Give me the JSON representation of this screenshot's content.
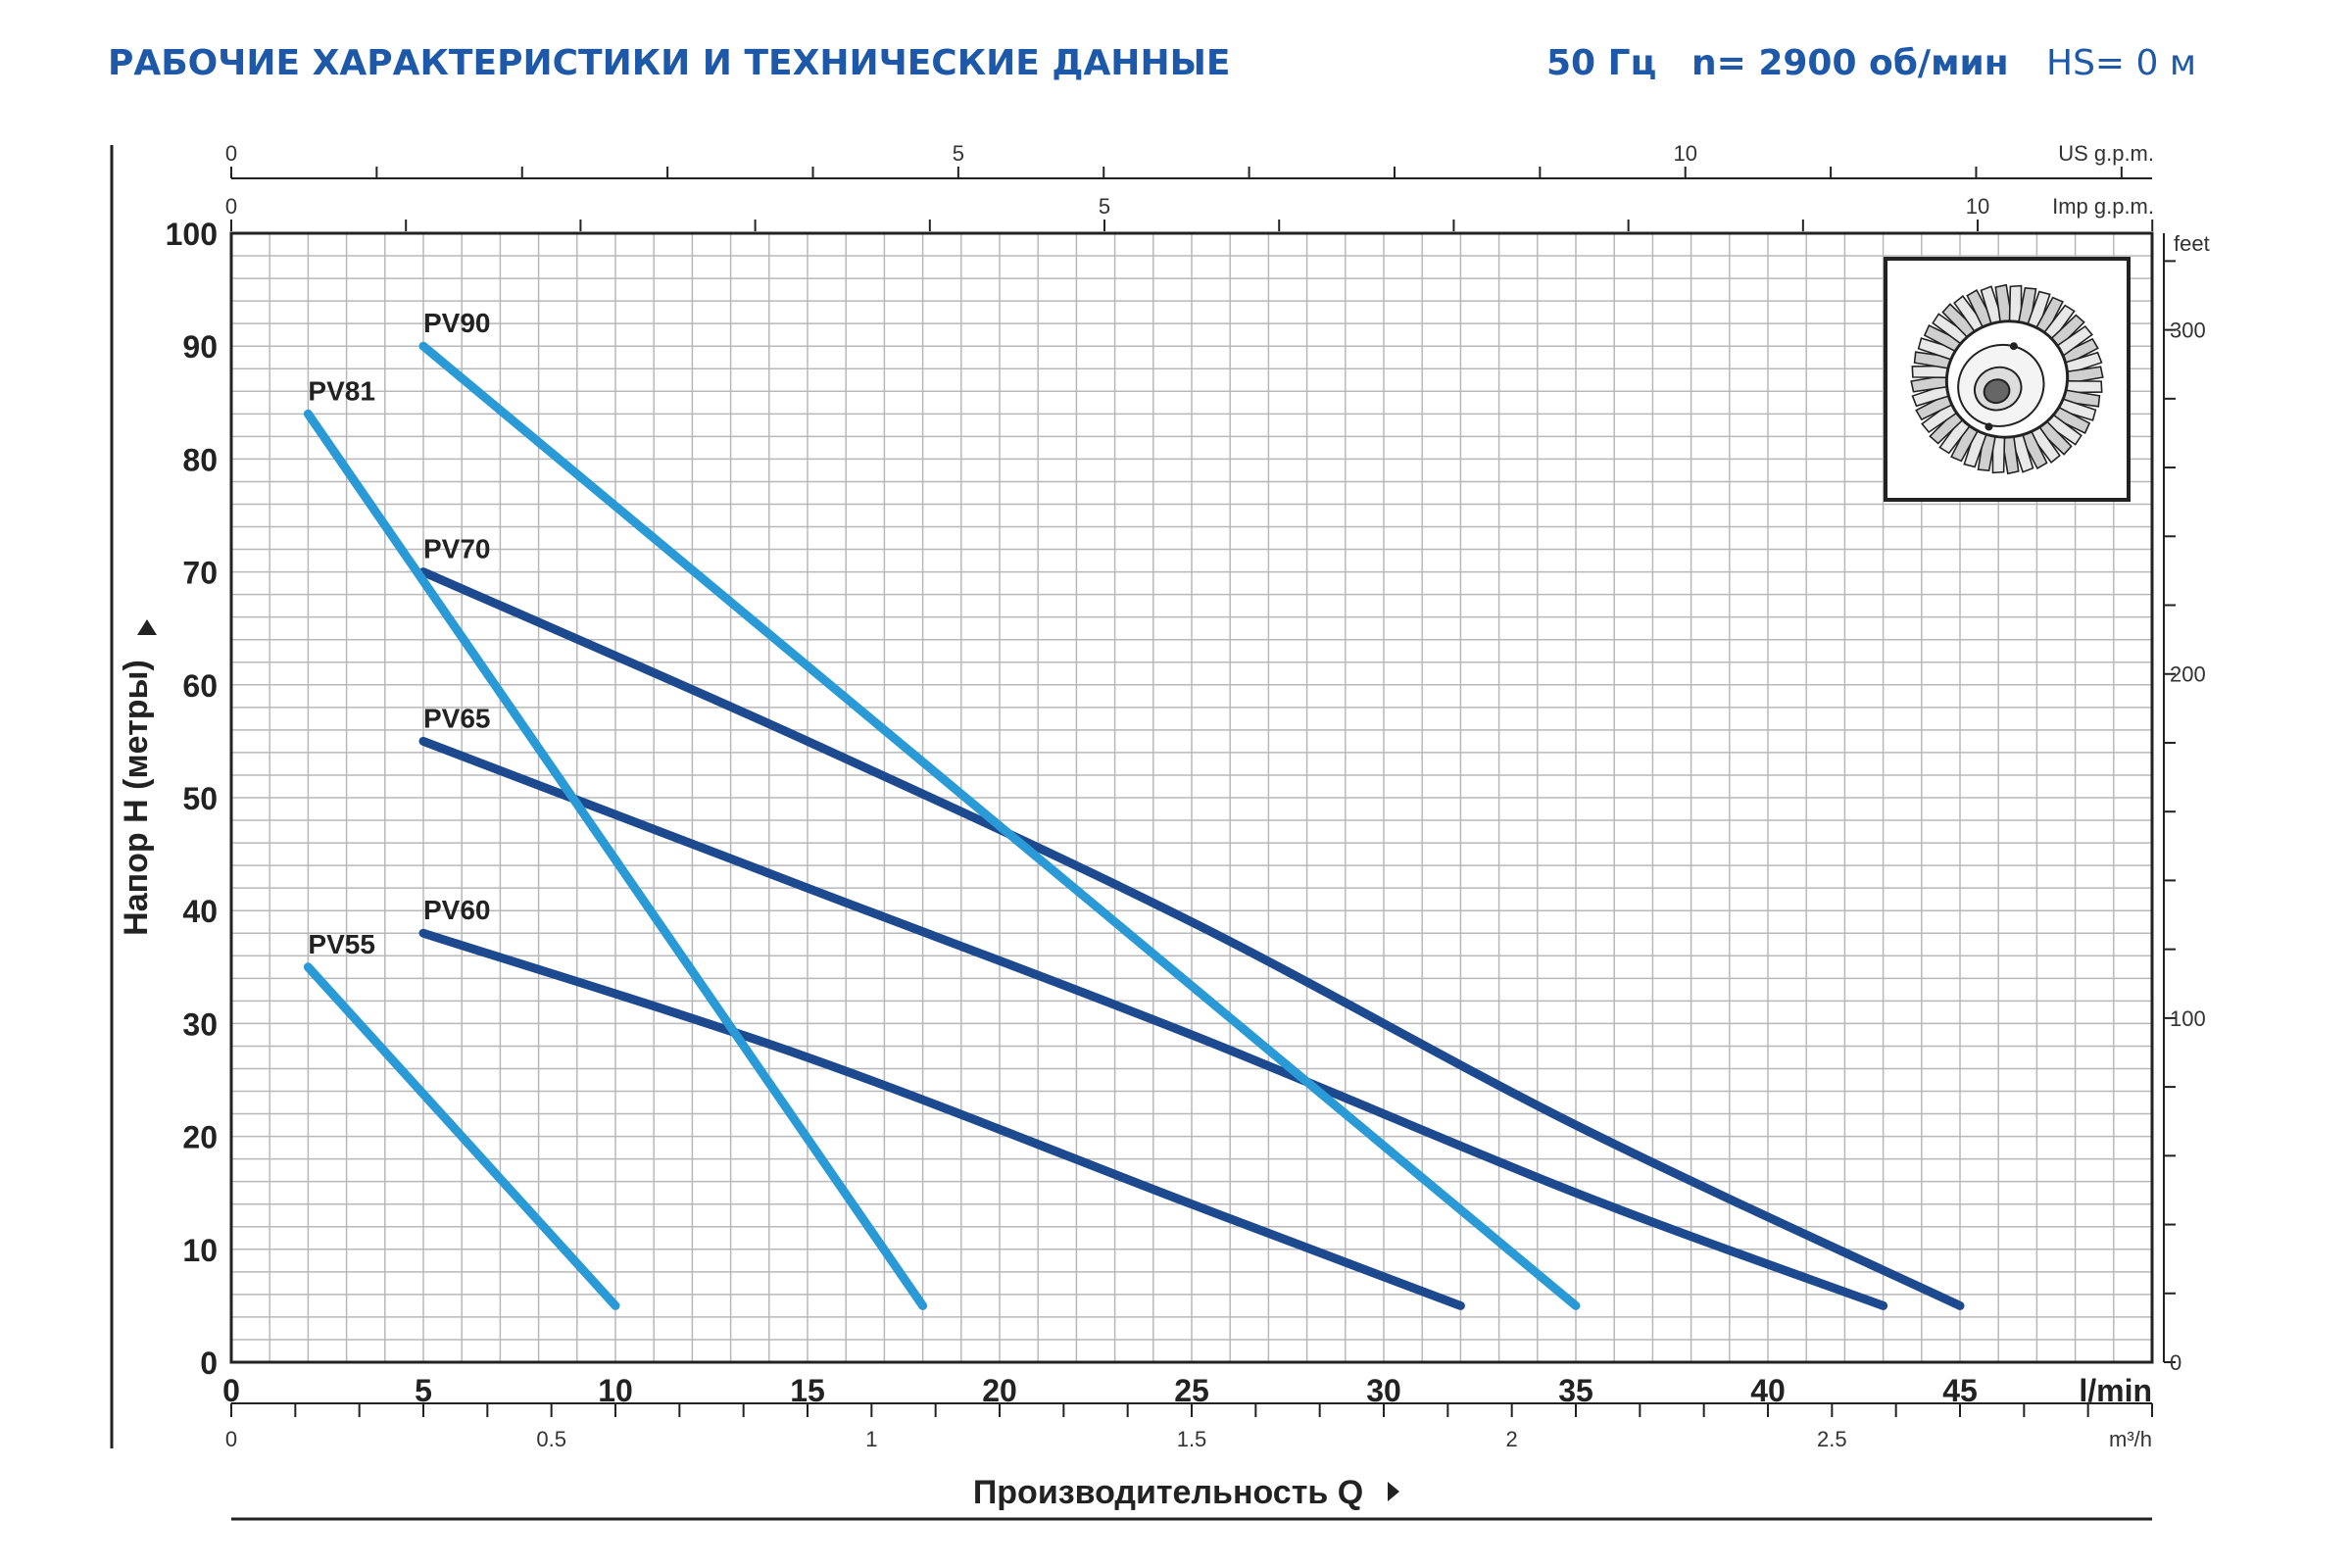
{
  "header": {
    "title": "РАБОЧИЕ ХАРАКТЕРИСТИКИ И ТЕХНИЧЕСКИЕ ДАННЫЕ",
    "frequency": "50 Гц",
    "speed": "n= 2900 об/мин",
    "hs": "HS= 0 м"
  },
  "colors": {
    "title": "#1e58a8",
    "light_curve": "#2a9ad6",
    "dark_curve": "#1d4a8f",
    "grid": "#b8b8b8",
    "axis": "#222222"
  },
  "inset": {
    "icon": "impeller-icon"
  },
  "chart_data": {
    "type": "line",
    "xlabel": "Производительность Q",
    "ylabel": "Напор H (метры)",
    "xlim": [
      0,
      50
    ],
    "ylim": [
      0,
      100
    ],
    "x_unit": "l/min",
    "x_ticks": [
      "0",
      "5",
      "10",
      "15",
      "20",
      "25",
      "30",
      "35",
      "40",
      "45"
    ],
    "y_ticks": [
      "0",
      "10",
      "20",
      "30",
      "40",
      "50",
      "60",
      "70",
      "80",
      "90",
      "100"
    ],
    "grid": true,
    "secondary_axes": {
      "us_gpm": {
        "label": "US g.p.m.",
        "ticks": [
          {
            "value": 0,
            "label": "0"
          },
          {
            "value": 5,
            "label": "5"
          },
          {
            "value": 10,
            "label": "10"
          }
        ]
      },
      "imp_gpm": {
        "label": "Imp g.p.m.",
        "ticks": [
          {
            "value": 0,
            "label": "0"
          },
          {
            "value": 5,
            "label": "5"
          },
          {
            "value": 10,
            "label": "10"
          }
        ]
      },
      "feet": {
        "label": "feet",
        "ticks": [
          {
            "value": 0,
            "label": "0"
          },
          {
            "value": 100,
            "label": "100"
          },
          {
            "value": 200,
            "label": "200"
          },
          {
            "value": 300,
            "label": "300"
          }
        ]
      },
      "m3h": {
        "label": "m³/h",
        "ticks": [
          {
            "value": 0,
            "label": "0"
          },
          {
            "value": 0.5,
            "label": "0.5"
          },
          {
            "value": 1,
            "label": "1"
          },
          {
            "value": 1.5,
            "label": "1.5"
          },
          {
            "value": 2,
            "label": "2"
          },
          {
            "value": 2.5,
            "label": "2.5"
          }
        ]
      }
    },
    "series": [
      {
        "name": "PV55",
        "style": "light",
        "x": [
          2,
          10
        ],
        "y": [
          35,
          5
        ]
      },
      {
        "name": "PV60",
        "style": "dark",
        "x": [
          5,
          15,
          25,
          32
        ],
        "y": [
          38,
          27,
          14,
          5
        ]
      },
      {
        "name": "PV65",
        "style": "dark",
        "x": [
          5,
          15,
          25,
          35,
          43
        ],
        "y": [
          55,
          42,
          29,
          15,
          5
        ]
      },
      {
        "name": "PV70",
        "style": "dark",
        "x": [
          5,
          15,
          25,
          35,
          45
        ],
        "y": [
          70,
          55,
          39,
          21,
          5
        ]
      },
      {
        "name": "PV81",
        "style": "light",
        "x": [
          2,
          18
        ],
        "y": [
          84,
          5
        ]
      },
      {
        "name": "PV90",
        "style": "light",
        "x": [
          5,
          35
        ],
        "y": [
          90,
          5
        ]
      }
    ]
  }
}
